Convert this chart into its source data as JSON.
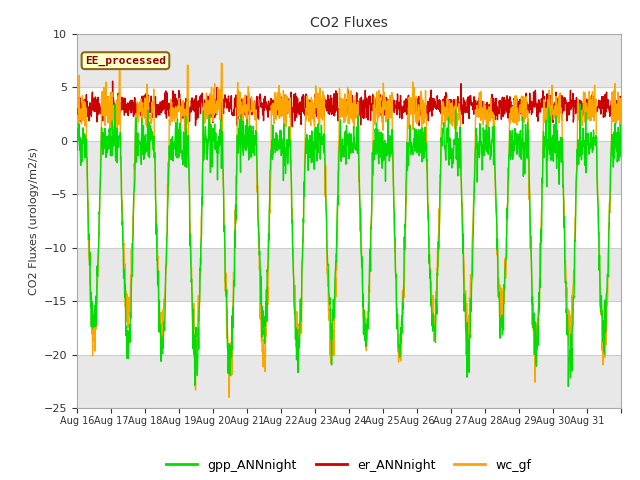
{
  "title": "CO2 Fluxes",
  "ylabel": "CO2 Fluxes (urology/m2/s)",
  "ylim": [
    -25,
    10
  ],
  "background_color": "#ffffff",
  "plot_bg_color": "#e8e8e8",
  "annotation_text": "EE_processed",
  "annotation_color": "#8b0000",
  "annotation_bg": "#ffffcc",
  "annotation_border": "#8b6914",
  "n_days": 16,
  "gpp_color": "#00dd00",
  "er_color": "#cc0000",
  "wc_color": "#ffa500",
  "legend_labels": [
    "gpp_ANNnight",
    "er_ANNnight",
    "wc_gf"
  ],
  "xtick_labels": [
    "Aug 16",
    "Aug 17",
    "Aug 18",
    "Aug 19",
    "Aug 20",
    "Aug 21",
    "Aug 22",
    "Aug 23",
    "Aug 24",
    "Aug 25",
    "Aug 26",
    "Aug 27",
    "Aug 28",
    "Aug 29",
    "Aug 30",
    "Aug 31"
  ],
  "yticks": [
    -25,
    -20,
    -15,
    -10,
    -5,
    0,
    5,
    10
  ],
  "hband_colors": [
    "#ffffff",
    "#e8e8e8",
    "#e8e8e8",
    "#e8e8e8",
    "#e8e8e8",
    "#ffffff"
  ],
  "points_per_day": 96,
  "line_width": 1.0
}
